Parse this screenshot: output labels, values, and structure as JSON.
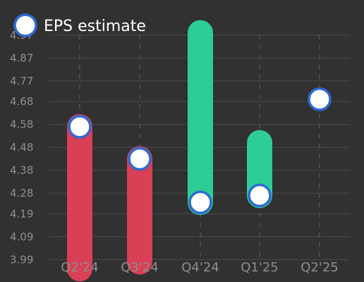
{
  "colors": {
    "background": "#313131",
    "grid": "#4a4a4a",
    "vgrid": "#5a5a5a",
    "tick_text": "#8e8e8e",
    "miss": "#d93f55",
    "beat": "#2ccd96",
    "marker_fill": "#ffffff",
    "marker_stroke": "#2f6ad3"
  },
  "chart_data": {
    "type": "bar",
    "title": "",
    "xlabel": "",
    "ylabel": "",
    "ylim": [
      3.96,
      5.0
    ],
    "categories": [
      "Q2'24",
      "Q3'24",
      "Q4'24",
      "Q1'25",
      "Q2'25"
    ],
    "y_ticks": [
      "3.99",
      "4.09",
      "4.19",
      "4.28",
      "4.38",
      "4.48",
      "4.58",
      "4.68",
      "4.77",
      "4.87",
      "4.97"
    ],
    "legend": {
      "position": "top-left",
      "label": "EPS estimate"
    },
    "grid": true,
    "series": [
      {
        "name": "EPS estimate",
        "values": [
          4.57,
          4.43,
          4.24,
          4.27,
          4.69
        ]
      },
      {
        "name": "",
        "values": [
          3.95,
          3.98,
          4.98,
          4.5,
          null
        ]
      }
    ]
  }
}
